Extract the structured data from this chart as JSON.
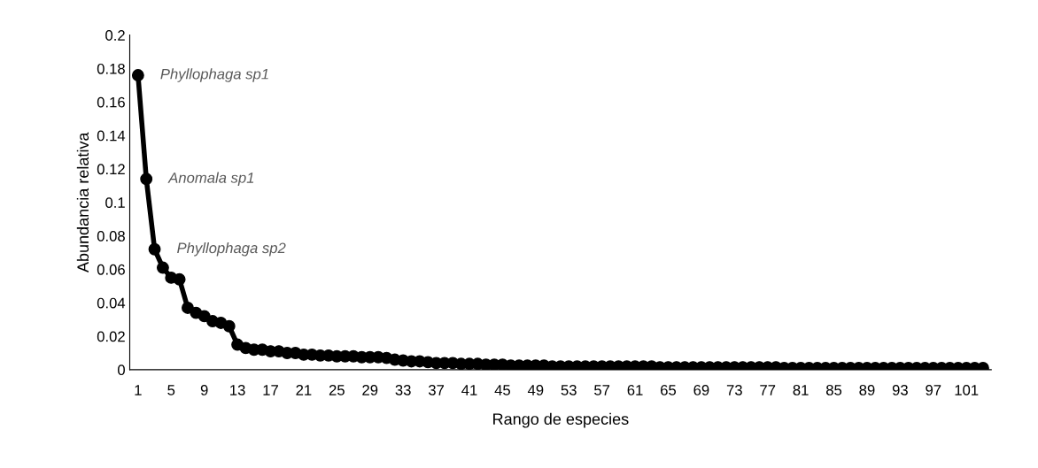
{
  "chart_data": {
    "type": "line",
    "xlabel": "Rango de especies",
    "ylabel": "Abundancia relativa",
    "categories": [
      "1",
      null,
      null,
      null,
      "5",
      null,
      null,
      null,
      "9",
      null,
      null,
      null,
      "13",
      null,
      null,
      null,
      "17",
      null,
      null,
      null,
      "21",
      null,
      null,
      null,
      "25",
      null,
      null,
      null,
      "29",
      null,
      null,
      null,
      "33",
      null,
      null,
      null,
      "37",
      null,
      null,
      null,
      "41",
      null,
      null,
      null,
      "45",
      null,
      null,
      null,
      "49",
      null,
      null,
      null,
      "53",
      null,
      null,
      null,
      "57",
      null,
      null,
      null,
      "61",
      null,
      null,
      null,
      "65",
      null,
      null,
      null,
      "69",
      null,
      null,
      null,
      "73",
      null,
      null,
      null,
      "77",
      null,
      null,
      null,
      "81",
      null,
      null,
      null,
      "85",
      null,
      null,
      null,
      "89",
      null,
      null,
      null,
      "93",
      null,
      null,
      null,
      "97",
      null,
      null,
      null,
      "101",
      null,
      null
    ],
    "series": [
      {
        "color": "#000000",
        "values": [
          0.176,
          0.114,
          0.072,
          0.061,
          0.055,
          0.054,
          0.037,
          0.034,
          0.032,
          0.029,
          0.028,
          0.026,
          0.015,
          0.013,
          0.012,
          0.012,
          0.011,
          0.011,
          0.01,
          0.01,
          0.009,
          0.009,
          0.0085,
          0.0085,
          0.008,
          0.008,
          0.008,
          0.0075,
          0.0075,
          0.0075,
          0.007,
          0.006,
          0.0055,
          0.005,
          0.005,
          0.0045,
          0.004,
          0.004,
          0.004,
          0.0035,
          0.0035,
          0.0035,
          0.003,
          0.003,
          0.003,
          0.0025,
          0.0025,
          0.0025,
          0.0025,
          0.0025,
          0.002,
          0.002,
          0.002,
          0.002,
          0.002,
          0.002,
          0.002,
          0.002,
          0.002,
          0.002,
          0.002,
          0.002,
          0.002,
          0.0015,
          0.0015,
          0.0015,
          0.0015,
          0.0015,
          0.0015,
          0.0015,
          0.0015,
          0.0015,
          0.0015,
          0.0015,
          0.0015,
          0.0015,
          0.0015,
          0.0015,
          0.001,
          0.001,
          0.001,
          0.001,
          0.001,
          0.001,
          0.001,
          0.001,
          0.001,
          0.001,
          0.001,
          0.001,
          0.001,
          0.001,
          0.001,
          0.001,
          0.001,
          0.001,
          0.001,
          0.001,
          0.001,
          0.001,
          0.001,
          0.001,
          0.001
        ]
      }
    ],
    "ylim": [
      0,
      0.2
    ],
    "yticks": [
      0,
      0.02,
      0.04,
      0.06,
      0.08,
      0.1,
      0.12,
      0.14,
      0.16,
      0.18,
      0.2
    ],
    "marker": "circle",
    "line_style": "solid",
    "grid": false,
    "legend": false,
    "annotations": [
      {
        "text": "Phyllophaga sp1",
        "x": "1",
        "y": 0.176
      },
      "Anomala sp1",
      "Phyllophaga sp2"
    ]
  }
}
